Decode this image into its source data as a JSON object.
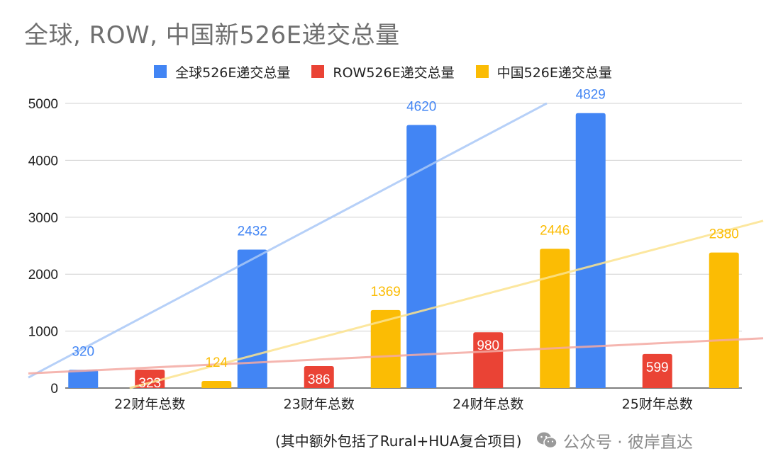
{
  "chart_data": {
    "type": "bar",
    "title": "全球, ROW, 中国新526E递交总量",
    "categories": [
      "22财年总数",
      "23财年总数",
      "24财年总数",
      "25财年总数"
    ],
    "series": [
      {
        "name": "全球526E递交总量",
        "values": [
          320,
          2432,
          4620,
          4829
        ],
        "color": "#4285f4",
        "trend_color": "#aac8f7",
        "label_inside": false
      },
      {
        "name": "ROW526E递交总量",
        "values": [
          323,
          386,
          980,
          599
        ],
        "color": "#ea4335",
        "trend_color": "#f4aaa3",
        "label_inside": true
      },
      {
        "name": "中国526E递交总量",
        "values": [
          124,
          1369,
          2446,
          2380
        ],
        "color": "#fbbc04",
        "trend_color": "#fce38f",
        "label_inside": false
      }
    ],
    "ylim": [
      0,
      5000
    ],
    "yticks": [
      0,
      1000,
      2000,
      3000,
      4000,
      5000
    ],
    "grid": true,
    "legend_position": "top",
    "trendlines": true
  },
  "footer_note": "(其中额外包括了Rural+HUA复合项目)",
  "watermark": {
    "icon": "wechat-icon",
    "text": "公众号 · 彼岸直达"
  }
}
